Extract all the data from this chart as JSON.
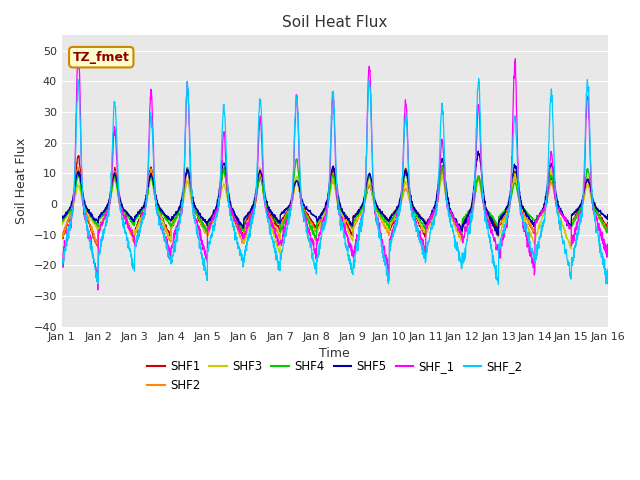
{
  "title": "Soil Heat Flux",
  "xlabel": "Time",
  "ylabel": "Soil Heat Flux",
  "xlim": [
    0,
    15
  ],
  "ylim": [
    -40,
    55
  ],
  "yticks": [
    -40,
    -30,
    -20,
    -10,
    0,
    10,
    20,
    30,
    40,
    50
  ],
  "xtick_labels": [
    "Jan 1",
    "Jan 2",
    "Jan 3",
    "Jan 4",
    "Jan 5",
    "Jan 6",
    "Jan 7",
    "Jan 8",
    "Jan 9",
    "Jan 10",
    "Jan 11",
    "Jan 12",
    "Jan 13",
    "Jan 14",
    "Jan 15",
    "Jan 16"
  ],
  "series_colors": {
    "SHF1": "#cc0000",
    "SHF2": "#ff8800",
    "SHF3": "#cccc00",
    "SHF4": "#00cc00",
    "SHF5": "#0000aa",
    "SHF_1": "#ff00ff",
    "SHF_2": "#00ccff"
  },
  "annotation_text": "TZ_fmet",
  "bg_color": "#e8e8e8",
  "fig_color": "#ffffff",
  "legend_ncol": 6
}
